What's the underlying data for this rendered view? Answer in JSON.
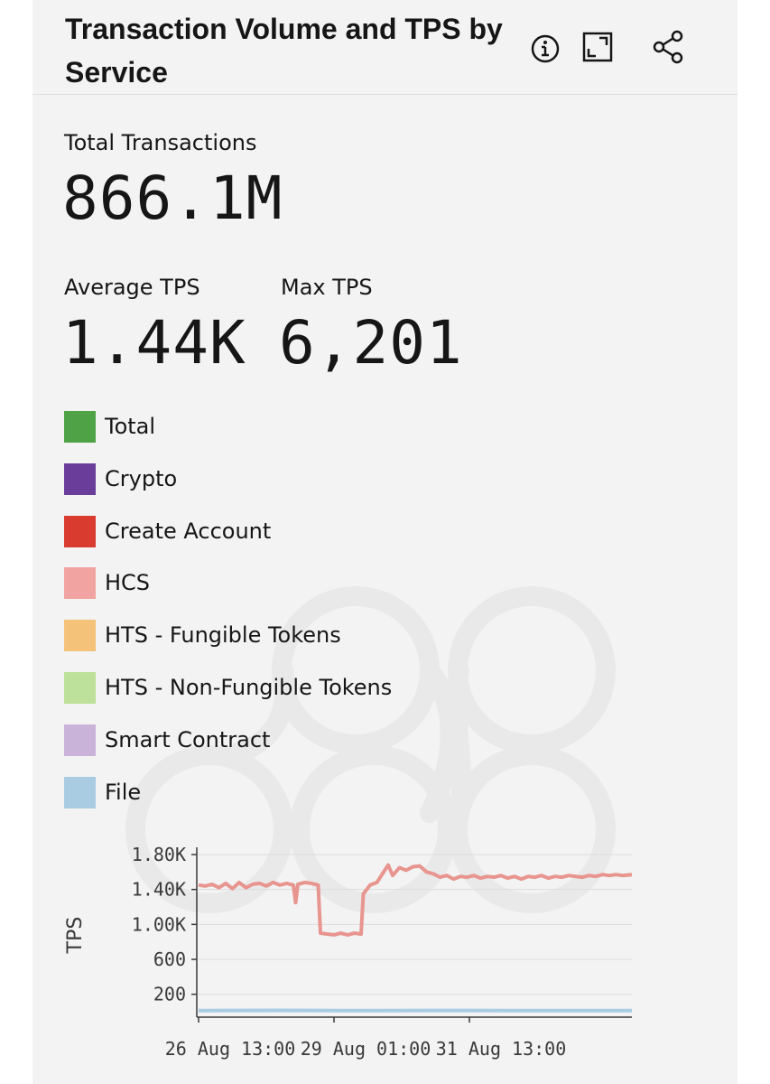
{
  "header": {
    "title": "Transaction Volume and TPS by Service",
    "icons": [
      "info-icon",
      "maximize-icon",
      "share-icon"
    ]
  },
  "kpis": {
    "total_label": "Total Transactions",
    "total_value": "866.1M",
    "avg_label": "Average TPS",
    "avg_value": "1.44K",
    "max_label": "Max TPS",
    "max_value": "6,201"
  },
  "legend": [
    {
      "label": "Total",
      "color": "#4fa346"
    },
    {
      "label": "Crypto",
      "color": "#6a3d9a"
    },
    {
      "label": "Create Account",
      "color": "#d93b2f"
    },
    {
      "label": "HCS",
      "color": "#f0a3a0"
    },
    {
      "label": "HTS - Fungible Tokens",
      "color": "#f5c27a"
    },
    {
      "label": "HTS - Non-Fungible Tokens",
      "color": "#bde19a"
    },
    {
      "label": "Smart Contract",
      "color": "#c9b3d9"
    },
    {
      "label": "File",
      "color": "#a9cce3"
    }
  ],
  "chart_data": {
    "type": "line",
    "ylabel": "TPS",
    "xlabel": "",
    "ylim": [
      0,
      1800
    ],
    "yticks": [
      200,
      600,
      1000,
      1400,
      1800
    ],
    "ytick_labels": [
      "200",
      "600",
      "1.00K",
      "1.40K",
      "1.80K"
    ],
    "xticks": [
      "2024-08-26T13:00",
      "2024-08-29T01:00",
      "2024-08-31T13:00"
    ],
    "xtick_labels": [
      "26 Aug 13:00",
      "29 Aug 01:00",
      "31 Aug 13:00"
    ],
    "xlim": [
      "2024-08-26T13:00",
      "2024-09-03T13:00"
    ],
    "grid": "horizontal",
    "series": [
      {
        "name": "HCS",
        "color": "#e8958f",
        "points": [
          [
            "2024-08-26T13:00",
            1450
          ],
          [
            "2024-08-26T16:00",
            1440
          ],
          [
            "2024-08-26T19:00",
            1460
          ],
          [
            "2024-08-26T22:00",
            1420
          ],
          [
            "2024-08-27T01:00",
            1470
          ],
          [
            "2024-08-27T04:00",
            1410
          ],
          [
            "2024-08-27T07:00",
            1480
          ],
          [
            "2024-08-27T10:00",
            1420
          ],
          [
            "2024-08-27T13:00",
            1460
          ],
          [
            "2024-08-27T16:00",
            1470
          ],
          [
            "2024-08-27T19:00",
            1440
          ],
          [
            "2024-08-27T22:00",
            1480
          ],
          [
            "2024-08-28T01:00",
            1450
          ],
          [
            "2024-08-28T04:00",
            1470
          ],
          [
            "2024-08-28T07:00",
            1450
          ],
          [
            "2024-08-28T08:00",
            1250
          ],
          [
            "2024-08-28T09:00",
            1460
          ],
          [
            "2024-08-28T12:00",
            1480
          ],
          [
            "2024-08-28T15:00",
            1470
          ],
          [
            "2024-08-28T18:00",
            1450
          ],
          [
            "2024-08-28T19:00",
            900
          ],
          [
            "2024-08-28T22:00",
            890
          ],
          [
            "2024-08-29T01:00",
            880
          ],
          [
            "2024-08-29T04:00",
            900
          ],
          [
            "2024-08-29T07:00",
            880
          ],
          [
            "2024-08-29T10:00",
            900
          ],
          [
            "2024-08-29T13:00",
            890
          ],
          [
            "2024-08-29T14:00",
            1350
          ],
          [
            "2024-08-29T17:00",
            1450
          ],
          [
            "2024-08-29T20:00",
            1480
          ],
          [
            "2024-08-29T23:00",
            1600
          ],
          [
            "2024-08-30T01:00",
            1680
          ],
          [
            "2024-08-30T03:00",
            1560
          ],
          [
            "2024-08-30T06:00",
            1650
          ],
          [
            "2024-08-30T09:00",
            1620
          ],
          [
            "2024-08-30T12:00",
            1660
          ],
          [
            "2024-08-30T15:00",
            1670
          ],
          [
            "2024-08-30T18:00",
            1600
          ],
          [
            "2024-08-30T21:00",
            1580
          ],
          [
            "2024-08-31T00:00",
            1540
          ],
          [
            "2024-08-31T03:00",
            1560
          ],
          [
            "2024-08-31T06:00",
            1520
          ],
          [
            "2024-08-31T09:00",
            1550
          ],
          [
            "2024-08-31T12:00",
            1540
          ],
          [
            "2024-08-31T15:00",
            1560
          ],
          [
            "2024-08-31T18:00",
            1530
          ],
          [
            "2024-08-31T21:00",
            1550
          ],
          [
            "2024-09-01T00:00",
            1540
          ],
          [
            "2024-09-01T03:00",
            1560
          ],
          [
            "2024-09-01T06:00",
            1530
          ],
          [
            "2024-09-01T09:00",
            1550
          ],
          [
            "2024-09-01T12:00",
            1520
          ],
          [
            "2024-09-01T15:00",
            1550
          ],
          [
            "2024-09-01T18:00",
            1540
          ],
          [
            "2024-09-01T21:00",
            1560
          ],
          [
            "2024-09-02T00:00",
            1530
          ],
          [
            "2024-09-02T03:00",
            1550
          ],
          [
            "2024-09-02T06:00",
            1540
          ],
          [
            "2024-09-02T09:00",
            1560
          ],
          [
            "2024-09-02T12:00",
            1550
          ],
          [
            "2024-09-02T15:00",
            1540
          ],
          [
            "2024-09-02T18:00",
            1560
          ],
          [
            "2024-09-02T21:00",
            1550
          ],
          [
            "2024-09-03T00:00",
            1570
          ],
          [
            "2024-09-03T03:00",
            1560
          ],
          [
            "2024-09-03T06:00",
            1570
          ],
          [
            "2024-09-03T09:00",
            1560
          ],
          [
            "2024-09-03T13:00",
            1570
          ]
        ]
      },
      {
        "name": "File",
        "color": "#a9cce3",
        "points": [
          [
            "2024-08-26T13:00",
            12
          ],
          [
            "2024-08-28T01:00",
            15
          ],
          [
            "2024-08-29T13:00",
            12
          ],
          [
            "2024-08-31T01:00",
            14
          ],
          [
            "2024-09-01T13:00",
            12
          ],
          [
            "2024-09-03T13:00",
            13
          ]
        ]
      }
    ]
  }
}
